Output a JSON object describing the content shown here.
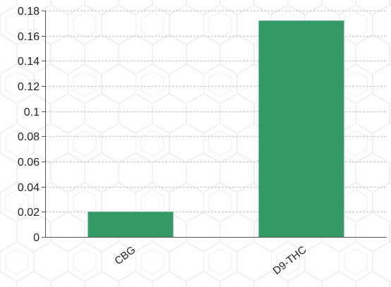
{
  "chart_data": {
    "type": "bar",
    "categories": [
      "CBG",
      "D9-THC"
    ],
    "values": [
      0.02,
      0.172
    ],
    "title": "",
    "xlabel": "",
    "ylabel": "",
    "ylim": [
      0,
      0.18
    ],
    "yticks": [
      0,
      0.02,
      0.04,
      0.06,
      0.08,
      0.1,
      0.12,
      0.14,
      0.16,
      0.18
    ],
    "ytick_labels": [
      "0",
      "0.02",
      "0.04",
      "0.06",
      "0.08",
      "0.1",
      "0.12",
      "0.14",
      "0.16",
      "0.18"
    ],
    "grid": true,
    "legend": "none",
    "colors": {
      "bar": "#339966",
      "grid": "#cfcfcf",
      "axis": "#555555",
      "background_pattern": "#efefef"
    }
  }
}
